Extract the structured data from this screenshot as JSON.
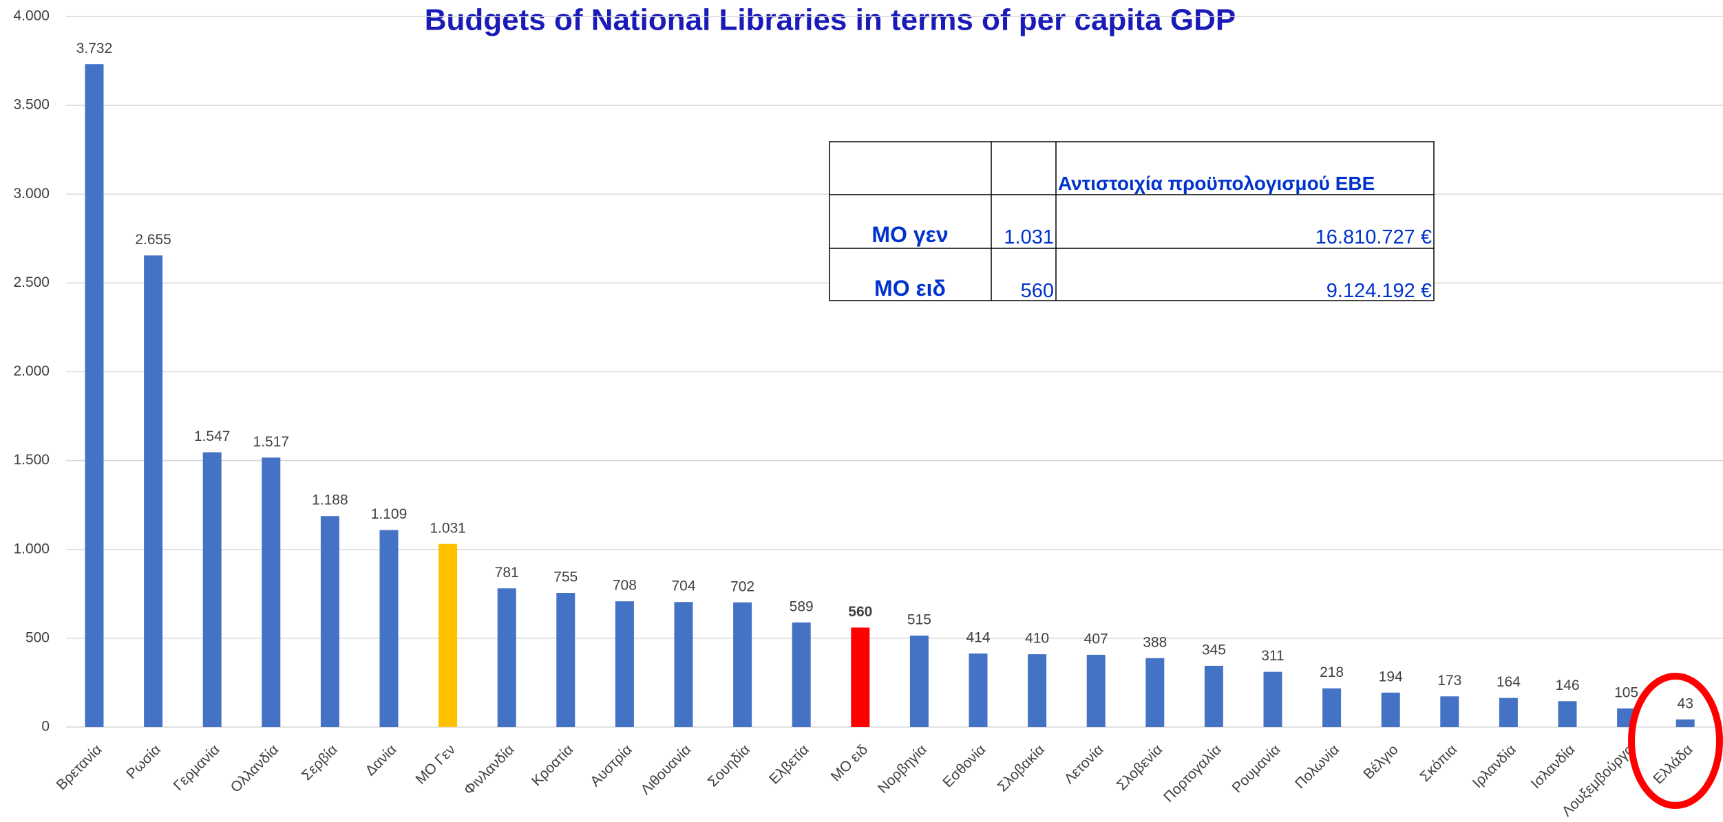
{
  "chart_data": {
    "type": "bar",
    "title": "Budgets of National Libraries in terms of per capita GDP",
    "categories": [
      "Βρετανία",
      "Ρωσία",
      "Γερμανία",
      "Ολλανδία",
      "Σερβία",
      "Δανία",
      "ΜΟ Γεν",
      "Φινλανδία",
      "Κροατία",
      "Αυστρία",
      "Λιθουανία",
      "Σουηδία",
      "Ελβετία",
      "ΜΟ ειδ",
      "Νορβηγία",
      "Εσθονία",
      "Σλοβακία",
      "Λετονία",
      "Σλοβενία",
      "Πορτογαλία",
      "Ρουμανία",
      "Πολωνία",
      "Βέλγιο",
      "Σκόπια",
      "Ιρλανδία",
      "Ισλανδία",
      "Λουξεμβούργο",
      "Ελλάδα"
    ],
    "values": [
      3732,
      2655,
      1547,
      1517,
      1188,
      1109,
      1031,
      781,
      755,
      708,
      704,
      702,
      589,
      560,
      515,
      414,
      410,
      407,
      388,
      345,
      311,
      218,
      194,
      173,
      164,
      146,
      105,
      43
    ],
    "value_labels": [
      "3.732",
      "2.655",
      "1.547",
      "1.517",
      "1.188",
      "1.109",
      "1.031",
      "781",
      "755",
      "708",
      "704",
      "702",
      "589",
      "560",
      "515",
      "414",
      "410",
      "407",
      "388",
      "345",
      "311",
      "218",
      "194",
      "173",
      "164",
      "146",
      "105",
      "43"
    ],
    "colors": [
      "#4472c4",
      "#4472c4",
      "#4472c4",
      "#4472c4",
      "#4472c4",
      "#4472c4",
      "#ffc000",
      "#4472c4",
      "#4472c4",
      "#4472c4",
      "#4472c4",
      "#4472c4",
      "#4472c4",
      "#ff0000",
      "#4472c4",
      "#4472c4",
      "#4472c4",
      "#4472c4",
      "#4472c4",
      "#4472c4",
      "#4472c4",
      "#4472c4",
      "#4472c4",
      "#4472c4",
      "#4472c4",
      "#4472c4",
      "#4472c4",
      "#4472c4"
    ],
    "ylim": [
      0,
      4000
    ],
    "yticks": [
      0,
      500,
      {
        "value": 1000,
        "label": "1.000"
      },
      {
        "value": 1500,
        "label": "1.500"
      },
      {
        "value": 2000,
        "label": "2.000"
      },
      {
        "value": 2500,
        "label": "2.500"
      },
      {
        "value": 3000,
        "label": "3.000"
      },
      {
        "value": 3500,
        "label": "3.500"
      },
      {
        "value": 4000,
        "label": "4.000"
      }
    ],
    "grid": true
  },
  "table": {
    "header": "Αντιστοιχία  προϋπολογισμού ΕΒΕ",
    "rows": [
      [
        "ΜΟ γεν",
        "1.031",
        "16.810.727 €"
      ],
      [
        "ΜΟ ειδ",
        "560",
        "9.124.192 €"
      ]
    ]
  }
}
